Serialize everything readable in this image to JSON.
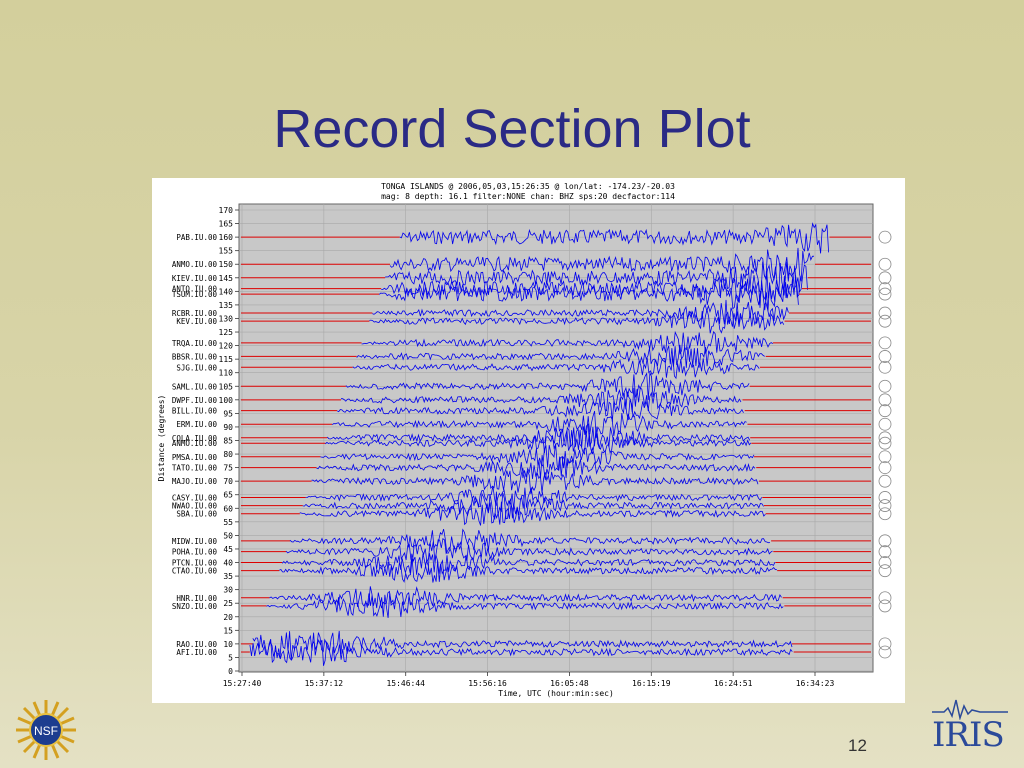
{
  "slide": {
    "title": "Record Section Plot",
    "page_number": "12",
    "iris_logo_text": "IRIS",
    "nsf_logo_text": "NSF"
  },
  "chart_data": {
    "type": "line",
    "title": "TONGA ISLANDS @ 2006,05,03,15:26:35 @ lon/lat: -174.23/-20.03",
    "subtitle": "mag: 8 depth: 16.1 filter:NONE chan: BHZ sps:20 decfactor:114",
    "xlabel": "Time, UTC (hour:min:sec)",
    "ylabel": "Distance (degrees)",
    "ylim": [
      0,
      170
    ],
    "y_ticks": [
      0,
      5,
      10,
      15,
      20,
      25,
      30,
      35,
      40,
      45,
      50,
      55,
      60,
      65,
      70,
      75,
      80,
      85,
      90,
      95,
      100,
      105,
      110,
      115,
      120,
      125,
      130,
      135,
      140,
      145,
      150,
      155,
      160,
      165,
      170
    ],
    "x_ticks": [
      "15:27:40",
      "15:37:12",
      "15:46:44",
      "15:56:16",
      "16:05:48",
      "16:15:19",
      "16:24:51",
      "16:34:23"
    ],
    "grid": true,
    "trace_color": "#0000ee",
    "pad_color": "#dd0000",
    "stations": [
      {
        "name": "PAB.IU.00",
        "distance": 160
      },
      {
        "name": "ANMO.IU.00",
        "distance": 150
      },
      {
        "name": "KIEV.IU.00",
        "distance": 145
      },
      {
        "name": "ANTO.IU.00",
        "distance": 141
      },
      {
        "name": "TSUM.IU.00",
        "distance": 139
      },
      {
        "name": "RCBR.IU.00",
        "distance": 132
      },
      {
        "name": "KEV.IU.00",
        "distance": 129
      },
      {
        "name": "TRQA.IU.00",
        "distance": 121
      },
      {
        "name": "BBSR.IU.00",
        "distance": 116
      },
      {
        "name": "SJG.IU.00",
        "distance": 112
      },
      {
        "name": "SAML.IU.00",
        "distance": 105
      },
      {
        "name": "DWPF.IU.00",
        "distance": 100
      },
      {
        "name": "BILL.IU.00",
        "distance": 96
      },
      {
        "name": "ERM.IU.00",
        "distance": 91
      },
      {
        "name": "COLA.IU.00",
        "distance": 86
      },
      {
        "name": "ANMO.IU.00",
        "distance": 84
      },
      {
        "name": "PMSA.IU.00",
        "distance": 79
      },
      {
        "name": "TATO.IU.00",
        "distance": 75
      },
      {
        "name": "MAJO.IU.00",
        "distance": 70
      },
      {
        "name": "CASY.IU.00",
        "distance": 64
      },
      {
        "name": "NWAO.IU.00",
        "distance": 61
      },
      {
        "name": "SBA.IU.00",
        "distance": 58
      },
      {
        "name": "MIDW.IU.00",
        "distance": 48
      },
      {
        "name": "POHA.IU.00",
        "distance": 44
      },
      {
        "name": "PTCN.IU.00",
        "distance": 40
      },
      {
        "name": "CTAO.IU.00",
        "distance": 37
      },
      {
        "name": "HNR.IU.00",
        "distance": 27
      },
      {
        "name": "SNZO.IU.00",
        "distance": 24
      },
      {
        "name": "RAO.IU.00",
        "distance": 10
      },
      {
        "name": "AFI.IU.00",
        "distance": 7
      }
    ]
  }
}
